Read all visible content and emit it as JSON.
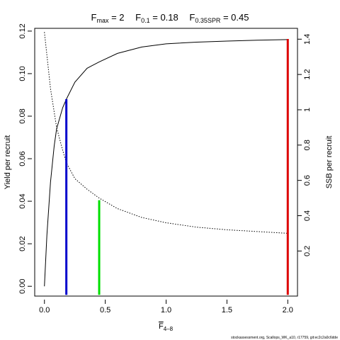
{
  "chart_data": {
    "type": "line",
    "title": {
      "fmax": {
        "base": "F",
        "sub": "max",
        "rest": " = 2"
      },
      "f01": {
        "base": "F",
        "sub": "0.1",
        "rest": " = 0.18"
      },
      "f035spr": {
        "base": "F",
        "sub": "0.35SPR",
        "rest": " = 0.45"
      }
    },
    "xlabel": {
      "base": "F",
      "sub": "4–8"
    },
    "ylabel": "Yield per recruit",
    "y2label": "SSB per recruit",
    "xlim": [
      -0.08,
      2.08
    ],
    "ylim": [
      -0.0046,
      0.1213
    ],
    "y2lim": [
      -0.0554,
      1.4614
    ],
    "x_ticks": [
      "0.0",
      "0.5",
      "1.0",
      "1.5",
      "2.0"
    ],
    "x_tick_values": [
      0,
      0.5,
      1,
      1.5,
      2
    ],
    "y_ticks": [
      "0.00",
      "0.02",
      "0.04",
      "0.06",
      "0.08",
      "0.10",
      "0.12"
    ],
    "y_tick_values": [
      0,
      0.02,
      0.04,
      0.06,
      0.08,
      0.1,
      0.12
    ],
    "y2_ticks": [
      "0.2",
      "0.4",
      "0.6",
      "0.8",
      "1",
      "1.2",
      "1.4"
    ],
    "y2_tick_values": [
      0.2,
      0.4,
      0.6,
      0.8,
      1.0,
      1.2,
      1.4
    ],
    "series": [
      {
        "axis": "left",
        "style": "solid",
        "color": "#000000",
        "x": [
          0,
          0.02,
          0.05,
          0.08,
          0.1,
          0.15,
          0.18,
          0.25,
          0.35,
          0.45,
          0.6,
          0.8,
          1.0,
          1.25,
          1.5,
          1.75,
          2.0
        ],
        "y": [
          0.0,
          0.024,
          0.049,
          0.066,
          0.074,
          0.084,
          0.088,
          0.096,
          0.1025,
          0.1055,
          0.1095,
          0.1125,
          0.114,
          0.1148,
          0.1153,
          0.1157,
          0.116
        ]
      },
      {
        "axis": "right",
        "style": "dotted",
        "color": "#000000",
        "x": [
          0,
          0.05,
          0.1,
          0.15,
          0.18,
          0.25,
          0.35,
          0.45,
          0.6,
          0.8,
          1.0,
          1.25,
          1.5,
          1.75,
          2.0
        ],
        "y": [
          1.44,
          1.12,
          0.9,
          0.77,
          0.7,
          0.61,
          0.55,
          0.5,
          0.44,
          0.39,
          0.36,
          0.335,
          0.32,
          0.31,
          0.3
        ]
      }
    ],
    "reference_lines": [
      {
        "label": "F0.1",
        "x": 0.18,
        "y": 0.088,
        "color": "#0000cc"
      },
      {
        "label": "F0.35SPR",
        "x": 0.45,
        "y": 0.0405,
        "color": "#00e000"
      },
      {
        "label": "Fmax",
        "x": 2.0,
        "y": 0.1163,
        "color": "#dd0000"
      }
    ],
    "credit": "stockassessment.org, Scallops_WK_a10, r17759, git:ec2c2a0c6dde"
  }
}
